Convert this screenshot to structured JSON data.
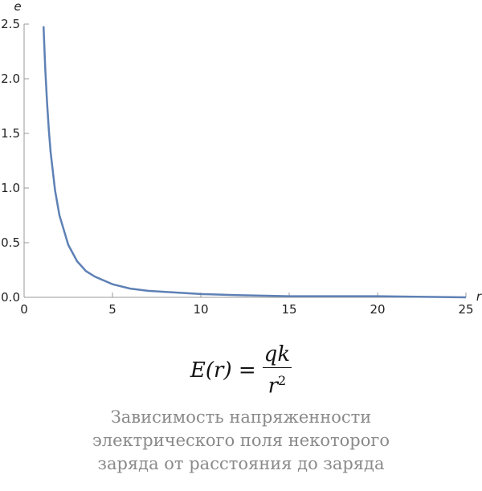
{
  "chart_data": {
    "type": "line",
    "x_label": "r",
    "y_label": "e",
    "x": [
      1.1,
      1.2,
      1.3,
      1.4,
      1.5,
      1.75,
      2,
      2.5,
      3,
      3.5,
      4,
      5,
      6,
      7,
      8,
      10,
      12,
      15,
      20,
      25
    ],
    "series": [
      {
        "color": "#5e81b5",
        "values": [
          2.48,
          2.08,
          1.78,
          1.53,
          1.33,
          0.98,
          0.75,
          0.48,
          0.33,
          0.24,
          0.19,
          0.12,
          0.08,
          0.06,
          0.05,
          0.03,
          0.02,
          0.01,
          0.01,
          0
        ]
      }
    ],
    "xlim": [
      0,
      25
    ],
    "ylim": [
      0,
      2.5
    ],
    "xticks": [
      0,
      5,
      10,
      15,
      20,
      25
    ],
    "yticks": [
      {
        "value": 0,
        "label": "0.0"
      },
      {
        "value": 0.5,
        "label": "0.5"
      },
      {
        "value": 1,
        "label": "1.0"
      },
      {
        "value": 1.5,
        "label": "1.5"
      },
      {
        "value": 2,
        "label": "2.0"
      },
      {
        "value": 2.5,
        "label": "2.5"
      }
    ]
  },
  "formula": {
    "lhs": "E(r) =",
    "numerator": "qk",
    "denominator": "r",
    "exponent": "2"
  },
  "caption": [
    "Зависимость напряженности",
    "электрического поля некоторого",
    "заряда от расстояния до заряда"
  ]
}
